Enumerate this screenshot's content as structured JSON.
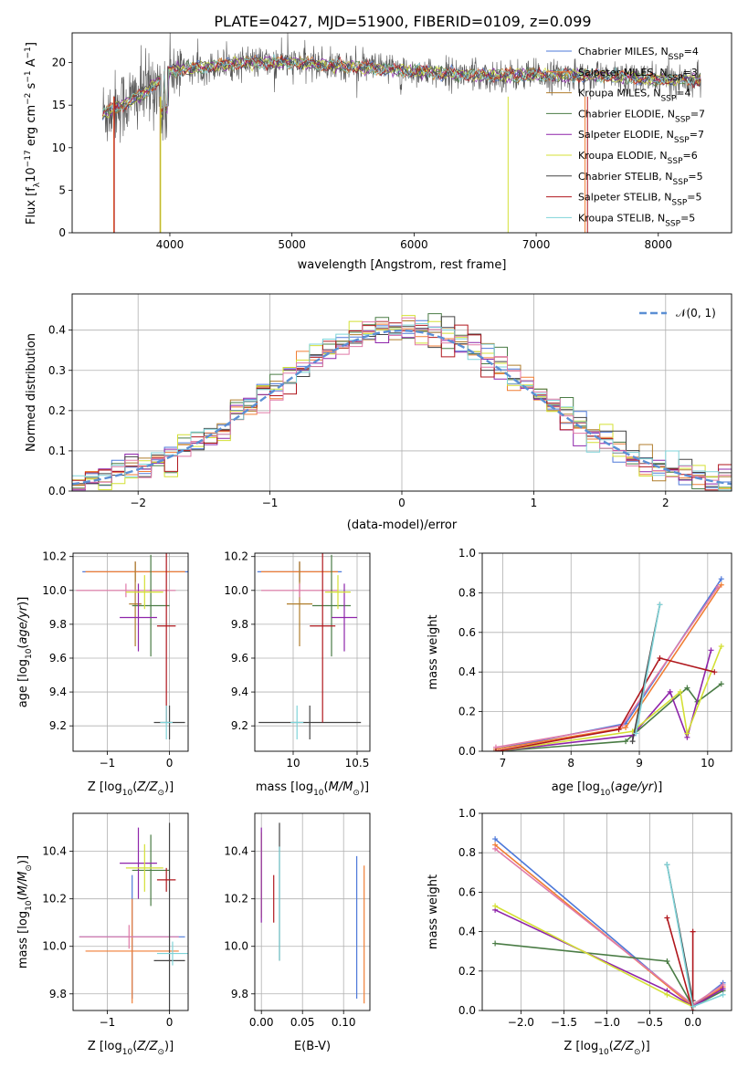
{
  "title": "PLATE=0427, MJD=51900, FIBERID=0109, z=0.099",
  "colors": {
    "Chabrier MILES": "#4e79d9",
    "Salpeter MILES": "#f07e34",
    "Kroupa MILES": "#b07d2c",
    "Chabrier ELODIE": "#4a7c45",
    "Salpeter ELODIE": "#8e24aa",
    "Kroupa ELODIE": "#d4e035",
    "Chabrier STELIB": "#444444",
    "Salpeter STELIB": "#b0171d",
    "Kroupa STELIB": "#7fd3d8",
    "pink": "#e07aa8",
    "normal": "#5b8fd4"
  },
  "chart_data": [
    {
      "id": "spectrum",
      "type": "line",
      "xlabel": "wavelength [Angstrom, rest frame]",
      "ylabel": "Flux [f_λ10^-17 erg cm^-2 s^-1 A^-1]",
      "xlim": [
        3200,
        8600
      ],
      "ylim": [
        0,
        23.5
      ],
      "xticks": [
        4000,
        5000,
        6000,
        7000,
        8000
      ],
      "yticks": [
        0,
        5,
        10,
        15,
        20
      ],
      "legend": [
        "Chabrier MILES, N_SSP=4",
        "Salpeter MILES, N_SSP=3",
        "Kroupa MILES, N_SSP=4",
        "Chabrier ELODIE, N_SSP=7",
        "Salpeter ELODIE, N_SSP=7",
        "Kroupa ELODIE, N_SSP=6",
        "Chabrier STELIB, N_SSP=5",
        "Salpeter STELIB, N_SSP=5",
        "Kroupa STELIB, N_SSP=5"
      ],
      "data_range": [
        3450,
        8350
      ],
      "continuum": [
        [
          3450,
          14
        ],
        [
          3600,
          15
        ],
        [
          3800,
          16.5
        ],
        [
          4000,
          19
        ],
        [
          4300,
          19.5
        ],
        [
          4600,
          20
        ],
        [
          5000,
          20
        ],
        [
          5500,
          19.5
        ],
        [
          6000,
          19
        ],
        [
          6500,
          18.5
        ],
        [
          7000,
          18.5
        ],
        [
          7500,
          18.5
        ],
        [
          8000,
          18
        ],
        [
          8350,
          18
        ]
      ]
    },
    {
      "id": "residuals",
      "type": "line",
      "xlabel": "(data-model)/error",
      "ylabel": "Normed distribution",
      "xlim": [
        -2.5,
        2.5
      ],
      "ylim": [
        0,
        0.49
      ],
      "xticks": [
        -2,
        -1,
        0,
        1,
        2
      ],
      "yticks": [
        0.0,
        0.1,
        0.2,
        0.3,
        0.4
      ],
      "legend": [
        "N(0,1)"
      ],
      "bins": 50
    },
    {
      "id": "age-vs-Z",
      "type": "scatter",
      "xlabel": "Z [log10(Z/Z_sun)]",
      "ylabel": "age [log10(age/yr)]",
      "xlim": [
        -1.55,
        0.3
      ],
      "ylim": [
        9.05,
        10.22
      ],
      "xticks": [
        -1,
        0
      ],
      "yticks": [
        9.2,
        9.4,
        9.6,
        9.8,
        10.0,
        10.2
      ],
      "points": [
        {
          "model": "Chabrier MILES",
          "x": -0.55,
          "y": 10.11,
          "xerr": 0.85,
          "yerr": 0.06
        },
        {
          "model": "Salpeter MILES",
          "x": -0.55,
          "y": 10.11,
          "xerr": 0.8,
          "yerr": 0.06
        },
        {
          "model": "Kroupa MILES",
          "x": -0.55,
          "y": 9.92,
          "xerr": 0.1,
          "yerr": 0.25
        },
        {
          "model": "pink",
          "x": -0.7,
          "y": 10.0,
          "xerr": 0.8,
          "yerr": 0.04
        },
        {
          "model": "Chabrier ELODIE",
          "x": -0.3,
          "y": 9.91,
          "xerr": 0.3,
          "yerr": 0.3
        },
        {
          "model": "Salpeter ELODIE",
          "x": -0.5,
          "y": 9.84,
          "xerr": 0.3,
          "yerr": 0.2
        },
        {
          "model": "Kroupa ELODIE",
          "x": -0.4,
          "y": 9.99,
          "xerr": 0.3,
          "yerr": 0.1
        },
        {
          "model": "Chabrier STELIB",
          "x": 0.0,
          "y": 9.22,
          "xerr": 0.25,
          "yerr": 0.1
        },
        {
          "model": "Salpeter STELIB",
          "x": -0.05,
          "y": 9.79,
          "xerr": 0.15,
          "yerr": 0.57
        },
        {
          "model": "Kroupa STELIB",
          "x": -0.05,
          "y": 9.22,
          "xerr": 0.1,
          "yerr": 0.1
        }
      ]
    },
    {
      "id": "age-vs-mass",
      "type": "scatter",
      "xlabel": "mass [log10(M/M_sun)]",
      "ylabel": "",
      "xlim": [
        9.7,
        10.6
      ],
      "ylim": [
        9.05,
        10.22
      ],
      "xticks": [
        10.0,
        10.5
      ],
      "yticks": [
        9.2,
        9.4,
        9.6,
        9.8,
        10.0,
        10.2
      ],
      "points": [
        {
          "model": "Chabrier MILES",
          "x": 10.05,
          "y": 10.11,
          "xerr": 0.33,
          "yerr": 0.06
        },
        {
          "model": "Salpeter MILES",
          "x": 10.05,
          "y": 10.11,
          "xerr": 0.3,
          "yerr": 0.06
        },
        {
          "model": "Kroupa MILES",
          "x": 10.05,
          "y": 9.92,
          "xerr": 0.1,
          "yerr": 0.25
        },
        {
          "model": "pink",
          "x": 10.05,
          "y": 10.0,
          "xerr": 0.3,
          "yerr": 0.04
        },
        {
          "model": "Chabrier ELODIE",
          "x": 10.3,
          "y": 9.91,
          "xerr": 0.15,
          "yerr": 0.3
        },
        {
          "model": "Salpeter ELODIE",
          "x": 10.4,
          "y": 9.84,
          "xerr": 0.1,
          "yerr": 0.2
        },
        {
          "model": "Kroupa ELODIE",
          "x": 10.35,
          "y": 9.99,
          "xerr": 0.1,
          "yerr": 0.1
        },
        {
          "model": "Chabrier STELIB",
          "x": 10.13,
          "y": 9.22,
          "xerr": 0.4,
          "yerr": 0.1
        },
        {
          "model": "Salpeter STELIB",
          "x": 10.23,
          "y": 9.79,
          "xerr": 0.1,
          "yerr": 0.57
        },
        {
          "model": "Kroupa STELIB",
          "x": 10.03,
          "y": 9.22,
          "xerr": 0.05,
          "yerr": 0.1
        }
      ]
    },
    {
      "id": "weight-vs-age",
      "type": "line",
      "xlabel": "age [log10(age/yr)]",
      "ylabel": "mass weight",
      "xlim": [
        6.7,
        10.35
      ],
      "ylim": [
        0.0,
        1.0
      ],
      "xticks": [
        7,
        8,
        9,
        10
      ],
      "yticks": [
        0.0,
        0.2,
        0.4,
        0.6,
        0.8,
        1.0
      ],
      "series": [
        {
          "model": "Chabrier MILES",
          "x": [
            6.9,
            8.8,
            10.2
          ],
          "y": [
            0.01,
            0.14,
            0.87
          ]
        },
        {
          "model": "Salpeter MILES",
          "x": [
            6.9,
            8.8,
            10.2
          ],
          "y": [
            0.01,
            0.12,
            0.84
          ]
        },
        {
          "model": "pink",
          "x": [
            6.9,
            8.75,
            10.15
          ],
          "y": [
            0.02,
            0.13,
            0.83
          ]
        },
        {
          "model": "Chabrier ELODIE",
          "x": [
            6.9,
            8.8,
            9.7,
            9.85,
            10.2
          ],
          "y": [
            0.0,
            0.05,
            0.32,
            0.25,
            0.34
          ]
        },
        {
          "model": "Salpeter ELODIE",
          "x": [
            6.9,
            8.9,
            9.45,
            9.7,
            10.05
          ],
          "y": [
            0.0,
            0.08,
            0.3,
            0.07,
            0.51
          ]
        },
        {
          "model": "Kroupa ELODIE",
          "x": [
            6.9,
            8.9,
            9.6,
            9.7,
            10.2
          ],
          "y": [
            0.0,
            0.1,
            0.3,
            0.09,
            0.53
          ]
        },
        {
          "model": "Chabrier STELIB",
          "x": [
            8.9,
            9.3
          ],
          "y": [
            0.05,
            0.74
          ]
        },
        {
          "model": "Salpeter STELIB",
          "x": [
            6.9,
            8.7,
            9.3,
            10.1
          ],
          "y": [
            0.0,
            0.11,
            0.47,
            0.4
          ]
        },
        {
          "model": "Kroupa STELIB",
          "x": [
            8.95,
            9.3
          ],
          "y": [
            0.09,
            0.74
          ]
        }
      ]
    },
    {
      "id": "mass-vs-Z",
      "type": "scatter",
      "xlabel": "Z [log10(Z/Z_sun)]",
      "ylabel": "mass [log10(M/M_sun)]",
      "xlim": [
        -1.55,
        0.3
      ],
      "ylim": [
        9.73,
        10.56
      ],
      "xticks": [
        -1,
        0
      ],
      "yticks": [
        9.8,
        10.0,
        10.2,
        10.4
      ],
      "points": [
        {
          "model": "Chabrier MILES",
          "x": -0.6,
          "y": 10.04,
          "xerr": 0.85,
          "yerr": 0.26
        },
        {
          "model": "Salpeter MILES",
          "x": -0.6,
          "y": 9.98,
          "xerr": 0.75,
          "yerr": 0.22
        },
        {
          "model": "pink",
          "x": -0.65,
          "y": 10.04,
          "xerr": 0.8,
          "yerr": 0.05
        },
        {
          "model": "Chabrier ELODIE",
          "x": -0.3,
          "y": 10.32,
          "xerr": 0.3,
          "yerr": 0.15
        },
        {
          "model": "Salpeter ELODIE",
          "x": -0.5,
          "y": 10.35,
          "xerr": 0.3,
          "yerr": 0.15
        },
        {
          "model": "Kroupa ELODIE",
          "x": -0.4,
          "y": 10.33,
          "xerr": 0.3,
          "yerr": 0.1
        },
        {
          "model": "Chabrier STELIB",
          "x": 0.0,
          "y": 9.94,
          "xerr": 0.25,
          "yerr": 0.58
        },
        {
          "model": "Salpeter STELIB",
          "x": -0.05,
          "y": 10.28,
          "xerr": 0.15,
          "yerr": 0.05
        },
        {
          "model": "Kroupa STELIB",
          "x": 0.05,
          "y": 9.97,
          "xerr": 0.25,
          "yerr": 0.05
        }
      ]
    },
    {
      "id": "mass-vs-ebv",
      "type": "scatter",
      "xlabel": "E(B-V)",
      "ylabel": "",
      "xlim": [
        -0.008,
        0.132
      ],
      "ylim": [
        9.73,
        10.56
      ],
      "xticks": [
        0.0,
        0.05,
        0.1
      ],
      "xticklabels": [
        "0.00",
        "0.05",
        "0.10"
      ],
      "yticks": [
        9.8,
        10.0,
        10.2,
        10.4
      ],
      "points": [
        {
          "model": "Kroupa ELODIE",
          "x": 0.0,
          "y": 10.3,
          "yerr": 0.18
        },
        {
          "model": "Salpeter ELODIE",
          "x": 0.0,
          "y": 10.3,
          "yerr": 0.2
        },
        {
          "model": "Salpeter STELIB",
          "x": 0.015,
          "y": 10.2,
          "yerr": 0.1
        },
        {
          "model": "Chabrier STELIB",
          "x": 0.022,
          "y": 10.23,
          "yerr": 0.29
        },
        {
          "model": "Kroupa STELIB",
          "x": 0.022,
          "y": 10.18,
          "yerr": 0.24
        },
        {
          "model": "Chabrier MILES",
          "x": 0.116,
          "y": 10.08,
          "yerr": 0.3
        },
        {
          "model": "Salpeter MILES",
          "x": 0.125,
          "y": 10.05,
          "yerr": 0.29
        }
      ]
    },
    {
      "id": "weight-vs-Z",
      "type": "line",
      "xlabel": "Z [log10(Z/Z_sun)]",
      "ylabel": "mass weight",
      "xlim": [
        -2.45,
        0.45
      ],
      "ylim": [
        0.0,
        1.0
      ],
      "xticks": [
        -2.0,
        -1.5,
        -1.0,
        -0.5,
        0.0
      ],
      "xticklabels": [
        "−2.0",
        "−1.5",
        "−1.0",
        "−0.5",
        "0.0"
      ],
      "yticks": [
        0.0,
        0.2,
        0.4,
        0.6,
        0.8,
        1.0
      ],
      "series": [
        {
          "model": "Chabrier MILES",
          "x": [
            -2.3,
            0.0,
            0.35
          ],
          "y": [
            0.87,
            0.02,
            0.14
          ]
        },
        {
          "model": "Salpeter MILES",
          "x": [
            -2.3,
            0.0,
            0.35
          ],
          "y": [
            0.84,
            0.02,
            0.12
          ]
        },
        {
          "model": "pink",
          "x": [
            -2.3,
            0.0,
            0.35
          ],
          "y": [
            0.82,
            0.03,
            0.13
          ]
        },
        {
          "model": "Chabrier ELODIE",
          "x": [
            -2.3,
            -0.3,
            0.0,
            0.35
          ],
          "y": [
            0.34,
            0.25,
            0.02,
            0.1
          ]
        },
        {
          "model": "Salpeter ELODIE",
          "x": [
            -2.3,
            -0.3,
            0.0,
            0.35
          ],
          "y": [
            0.51,
            0.1,
            0.02,
            0.11
          ]
        },
        {
          "model": "Kroupa ELODIE",
          "x": [
            -2.3,
            -0.3,
            0.0
          ],
          "y": [
            0.53,
            0.08,
            0.02
          ]
        },
        {
          "model": "Chabrier STELIB",
          "x": [
            -0.3,
            0.0
          ],
          "y": [
            0.74,
            0.05
          ]
        },
        {
          "model": "Salpeter STELIB",
          "x": [
            -0.3,
            0.0,
            0.0
          ],
          "y": [
            0.47,
            0.0,
            0.4
          ]
        },
        {
          "model": "Kroupa STELIB",
          "x": [
            -0.3,
            0.0,
            0.35
          ],
          "y": [
            0.74,
            0.02,
            0.08
          ]
        }
      ]
    }
  ]
}
